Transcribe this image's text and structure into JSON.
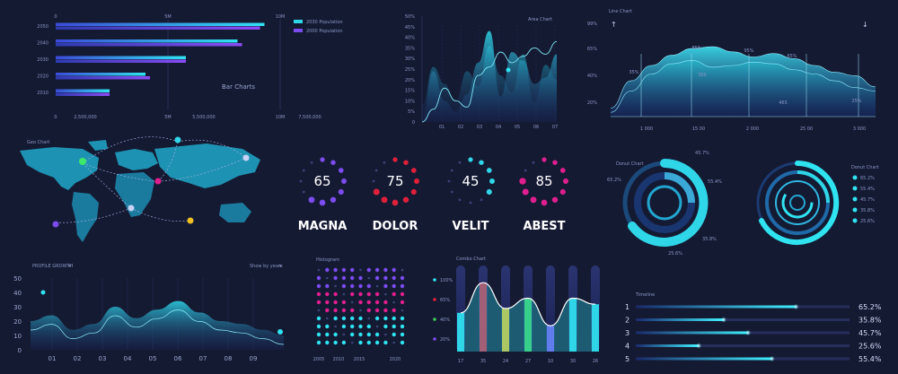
{
  "chart_data": [
    {
      "id": "bar",
      "type": "bar",
      "orientation": "horizontal",
      "title": "Bar Charts",
      "categories": [
        "2050",
        "2040",
        "2030",
        "2020",
        "2010"
      ],
      "series": [
        {
          "name": "2030 Population",
          "color": "#2fd6e8",
          "values": [
            9.3,
            8.1,
            5.8,
            4.0,
            2.4
          ]
        },
        {
          "name": "2000 Population",
          "color": "#7b4cf0",
          "values": [
            9.1,
            8.3,
            5.8,
            4.2,
            2.4
          ]
        }
      ],
      "xlim": [
        0,
        10
      ],
      "top_ticks": [
        "0",
        "5M",
        "10M"
      ],
      "bottom_ticks": [
        "0",
        "2,500,000",
        "5M",
        "5,500,000",
        "10M",
        "7,500,000"
      ],
      "legend": "top-right"
    },
    {
      "id": "area",
      "type": "area",
      "title": "Area Chart",
      "y_ticks": [
        "50%",
        "45%",
        "40%",
        "35%",
        "30%",
        "25%",
        "20%",
        "15%",
        "10%",
        "5%",
        "0"
      ],
      "x_ticks": [
        "01",
        "02",
        "03",
        "04",
        "05",
        "06",
        "07"
      ],
      "series": [
        {
          "values": [
            8,
            26,
            18,
            10,
            24,
            17,
            36,
            22,
            14,
            32,
            9,
            27,
            20
          ]
        },
        {
          "values": [
            2,
            24,
            10,
            5,
            13,
            28,
            43,
            12,
            33,
            29,
            18,
            21,
            32
          ]
        },
        {
          "values": [
            0,
            6,
            16,
            10,
            7,
            22,
            26,
            33,
            28,
            31,
            35,
            32,
            38
          ]
        }
      ],
      "ylim": [
        0,
        50
      ]
    },
    {
      "id": "line",
      "type": "area",
      "title": "Line Chart",
      "y_ticks": [
        "99%",
        "65%",
        "40%",
        "20%"
      ],
      "x_ticks": [
        "1 000",
        "15 00",
        "2 000",
        "25 00",
        "3 000"
      ],
      "annotations": [
        "35%",
        "85%",
        "95%",
        "65%",
        "365",
        "465",
        "25%"
      ],
      "series": [
        {
          "values": [
            10,
            42,
            60,
            72,
            80,
            82,
            76,
            70,
            74,
            68,
            60,
            52,
            48,
            35
          ]
        },
        {
          "values": [
            5,
            30,
            50,
            62,
            66,
            58,
            60,
            64,
            62,
            55,
            50,
            42,
            34,
            30
          ]
        }
      ],
      "ylim": [
        0,
        100
      ]
    },
    {
      "id": "kpis",
      "type": "donut",
      "items": [
        {
          "value": "65",
          "name": "MAGNA",
          "color": "#7b4cf0"
        },
        {
          "value": "75",
          "name": "DOLOR",
          "color": "#e0203a"
        },
        {
          "value": "45",
          "name": "VELIT",
          "color": "#2fd6e8"
        },
        {
          "value": "85",
          "name": "ABEST",
          "color": "#e01f8f"
        }
      ]
    },
    {
      "id": "donut1",
      "type": "donut",
      "title": "Donut Chart",
      "labels": [
        "45.7%",
        "55.4%",
        "35.8%",
        "25.6%",
        "65.2%"
      ]
    },
    {
      "id": "donut2",
      "type": "donut",
      "title": "Donut Chart",
      "legend": [
        "65.2%",
        "55.4%",
        "45.7%",
        "35.8%",
        "25.6%"
      ]
    },
    {
      "id": "profile",
      "type": "area",
      "title": "PROFILE GROWTH",
      "filter": "Show by years",
      "y_ticks": [
        "50",
        "40",
        "30",
        "20",
        "10",
        "0"
      ],
      "x_ticks": [
        "01",
        "02",
        "03",
        "04",
        "05",
        "06",
        "07",
        "08",
        "09"
      ],
      "series": [
        {
          "values": [
            20,
            24,
            14,
            18,
            30,
            22,
            28,
            34,
            26,
            20,
            18,
            14,
            10
          ]
        }
      ],
      "ylim": [
        0,
        50
      ]
    },
    {
      "id": "histogram",
      "type": "scatter",
      "title": "Histogram",
      "x_ticks": [
        "2005",
        "2010",
        "2015",
        "2020"
      ]
    },
    {
      "id": "combo",
      "type": "bar",
      "title": "Combo Chart",
      "y_ticks": [
        "100%",
        "65%",
        "40%",
        "20%"
      ],
      "x_ticks": [
        "17",
        "35",
        "24",
        "27",
        "10",
        "30",
        "26"
      ],
      "values": [
        45,
        80,
        50,
        62,
        30,
        62,
        55
      ],
      "colors": [
        "#2fd6e8",
        "#e0203a",
        "#f0c020",
        "#3ec95a",
        "#7b4cf0",
        "#2fd6e8",
        "#2fd6e8"
      ]
    },
    {
      "id": "timeline",
      "type": "bar",
      "orientation": "horizontal",
      "title": "Timeline",
      "categories": [
        "1",
        "2",
        "3",
        "4",
        "5"
      ],
      "values": [
        65.2,
        35.8,
        45.7,
        25.6,
        55.4
      ],
      "labels": [
        "65.2%",
        "35.8%",
        "45.7%",
        "25.6%",
        "55.4%"
      ]
    }
  ]
}
